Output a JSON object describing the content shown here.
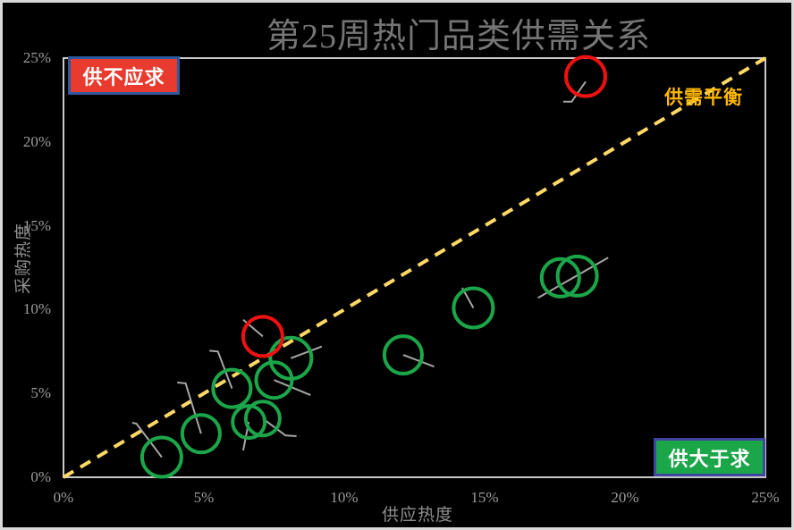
{
  "colors": {
    "background": "#000000",
    "frame_border": "#D9D9D9",
    "plot_border": "#C9C9C9",
    "title_text": "#757575",
    "tick_text": "#9C9C9C",
    "axis_title_text": "#8F8F8F",
    "balance_dash": "#FFD966",
    "balance_label_text": "#FFB900",
    "green_circle": "#1CA64A",
    "red_circle": "#EE1111",
    "leader_line": "#A6A6A6",
    "undersupply_bg": "#E83A2E",
    "undersupply_border": "#2D5A9E",
    "oversupply_bg": "#1CA64A",
    "oversupply_border": "#3F46A0",
    "zone_text": "#FFFFFF"
  },
  "chart_data": {
    "type": "scatter",
    "title": "第25周热门品类供需关系",
    "xlabel": "供应热度",
    "ylabel": "采购热度",
    "xlim": [
      0,
      25
    ],
    "ylim": [
      0,
      25
    ],
    "grid": false,
    "x_tick_labels": [
      "0%",
      "5%",
      "10%",
      "15%",
      "20%",
      "25%"
    ],
    "x_tick_values": [
      0,
      5,
      10,
      15,
      20,
      25
    ],
    "y_tick_labels": [
      "0%",
      "5%",
      "10%",
      "15%",
      "20%",
      "25%"
    ],
    "y_tick_values": [
      0,
      5,
      10,
      15,
      20,
      25
    ],
    "annotations": {
      "upper_left_zone": "供不应求",
      "diagonal_label": "供需平衡",
      "lower_right_zone": "供大于求"
    },
    "balance_line": {
      "from_xy": [
        0,
        0
      ],
      "to_xy": [
        25,
        25
      ],
      "style": "dashed"
    },
    "series": [
      {
        "name": "red_circles",
        "color": "#EE1111",
        "points": [
          {
            "x": 18.6,
            "y": 23.9,
            "r": 22
          },
          {
            "x": 7.1,
            "y": 8.4,
            "r": 22
          }
        ]
      },
      {
        "name": "green_circles",
        "color": "#1CA64A",
        "points": [
          {
            "x": 8.1,
            "y": 7.1,
            "r": 23
          },
          {
            "x": 7.5,
            "y": 5.8,
            "r": 20
          },
          {
            "x": 6.0,
            "y": 5.3,
            "r": 21
          },
          {
            "x": 6.6,
            "y": 3.3,
            "r": 18
          },
          {
            "x": 7.1,
            "y": 3.5,
            "r": 19
          },
          {
            "x": 4.9,
            "y": 2.6,
            "r": 21
          },
          {
            "x": 3.5,
            "y": 1.2,
            "r": 22
          },
          {
            "x": 12.1,
            "y": 7.3,
            "r": 21
          },
          {
            "x": 14.6,
            "y": 10.1,
            "r": 22
          },
          {
            "x": 17.7,
            "y": 11.9,
            "r": 21
          },
          {
            "x": 18.3,
            "y": 12.0,
            "r": 22
          }
        ]
      }
    ],
    "leader_lines": [
      [
        [
          18.6,
          23.6
        ],
        [
          18.1,
          22.4
        ],
        [
          17.8,
          22.4
        ]
      ],
      [
        [
          7.1,
          8.4
        ],
        [
          6.4,
          9.4
        ]
      ],
      [
        [
          8.1,
          7.1
        ],
        [
          9.2,
          7.8
        ]
      ],
      [
        [
          7.5,
          5.8
        ],
        [
          8.8,
          4.9
        ]
      ],
      [
        [
          6.0,
          5.3
        ],
        [
          5.5,
          7.5
        ],
        [
          5.2,
          7.55
        ]
      ],
      [
        [
          6.6,
          3.3
        ],
        [
          6.4,
          1.6
        ]
      ],
      [
        [
          7.1,
          3.5
        ],
        [
          7.9,
          2.5
        ],
        [
          8.3,
          2.45
        ]
      ],
      [
        [
          4.9,
          2.6
        ],
        [
          4.35,
          5.6
        ],
        [
          4.05,
          5.65
        ]
      ],
      [
        [
          3.5,
          1.2
        ],
        [
          2.6,
          3.2
        ],
        [
          2.45,
          3.25
        ]
      ],
      [
        [
          12.1,
          7.3
        ],
        [
          13.2,
          6.6
        ]
      ],
      [
        [
          14.6,
          10.1
        ],
        [
          14.2,
          11.3
        ]
      ],
      [
        [
          16.9,
          10.7
        ],
        [
          19.4,
          13.1
        ]
      ]
    ]
  }
}
